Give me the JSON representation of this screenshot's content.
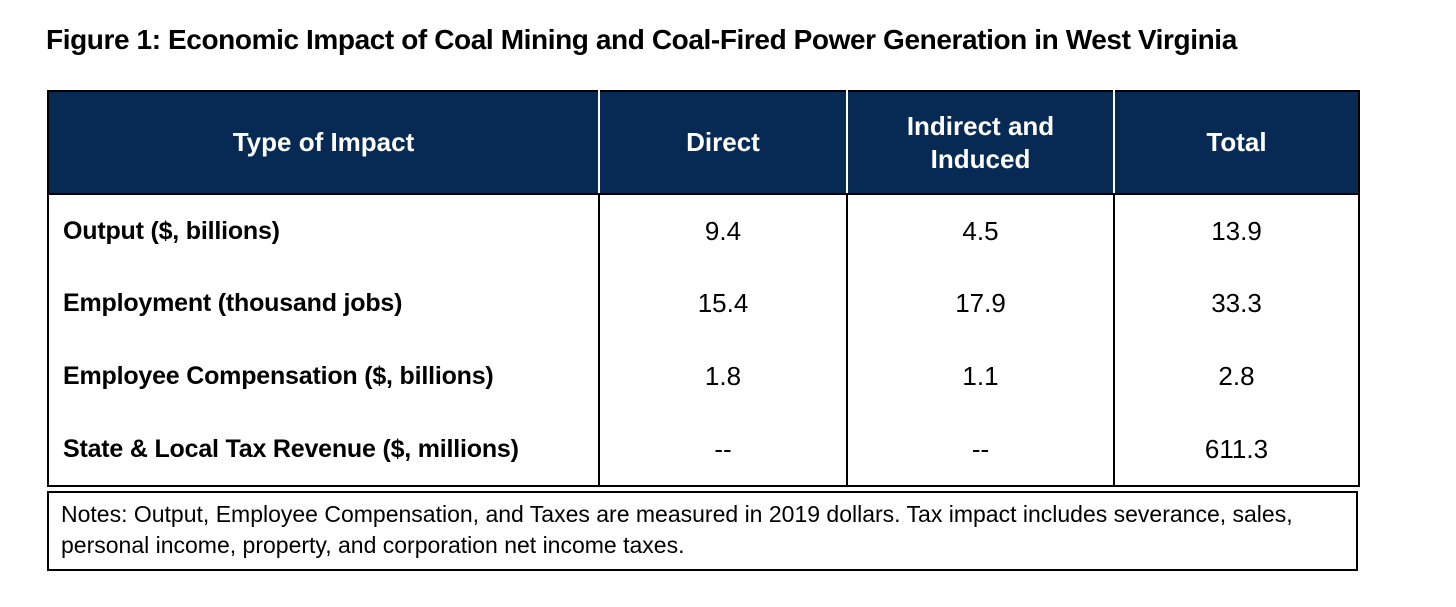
{
  "title": "Figure 1: Economic Impact of Coal Mining and Coal-Fired Power Generation in West Virginia",
  "table": {
    "columns": [
      "Type of Impact",
      "Direct",
      "Indirect and Induced",
      "Total"
    ],
    "rows": [
      {
        "label": "Output ($, billions)",
        "values": [
          "9.4",
          "4.5",
          "13.9"
        ]
      },
      {
        "label": "Employment (thousand jobs)",
        "values": [
          "15.4",
          "17.9",
          "33.3"
        ]
      },
      {
        "label": "Employee Compensation ($, billions)",
        "values": [
          "1.8",
          "1.1",
          "2.8"
        ]
      },
      {
        "label": "State & Local Tax Revenue ($, millions)",
        "values": [
          "--",
          "--",
          "611.3"
        ]
      }
    ],
    "notes": "Notes: Output, Employee Compensation, and Taxes are measured in 2019 dollars. Tax impact includes severance, sales, personal income, property, and corporation net income taxes."
  },
  "chart_data": {
    "type": "table",
    "title": "Figure 1: Economic Impact of Coal Mining and Coal-Fired Power Generation in West Virginia",
    "columns": [
      "Type of Impact",
      "Direct",
      "Indirect and Induced",
      "Total"
    ],
    "rows": [
      [
        "Output ($, billions)",
        9.4,
        4.5,
        13.9
      ],
      [
        "Employment (thousand jobs)",
        15.4,
        17.9,
        33.3
      ],
      [
        "Employee Compensation ($, billions)",
        1.8,
        1.1,
        2.8
      ],
      [
        "State & Local Tax Revenue ($, millions)",
        null,
        null,
        611.3
      ]
    ],
    "missing_value_marker": "--",
    "notes": "Notes: Output, Employee Compensation, and Taxes are measured in 2019 dollars. Tax impact includes severance, sales, personal income, property, and corporation net income taxes."
  },
  "colors": {
    "header_bg": "#072a55",
    "header_text": "#ffffff",
    "border": "#000000"
  }
}
